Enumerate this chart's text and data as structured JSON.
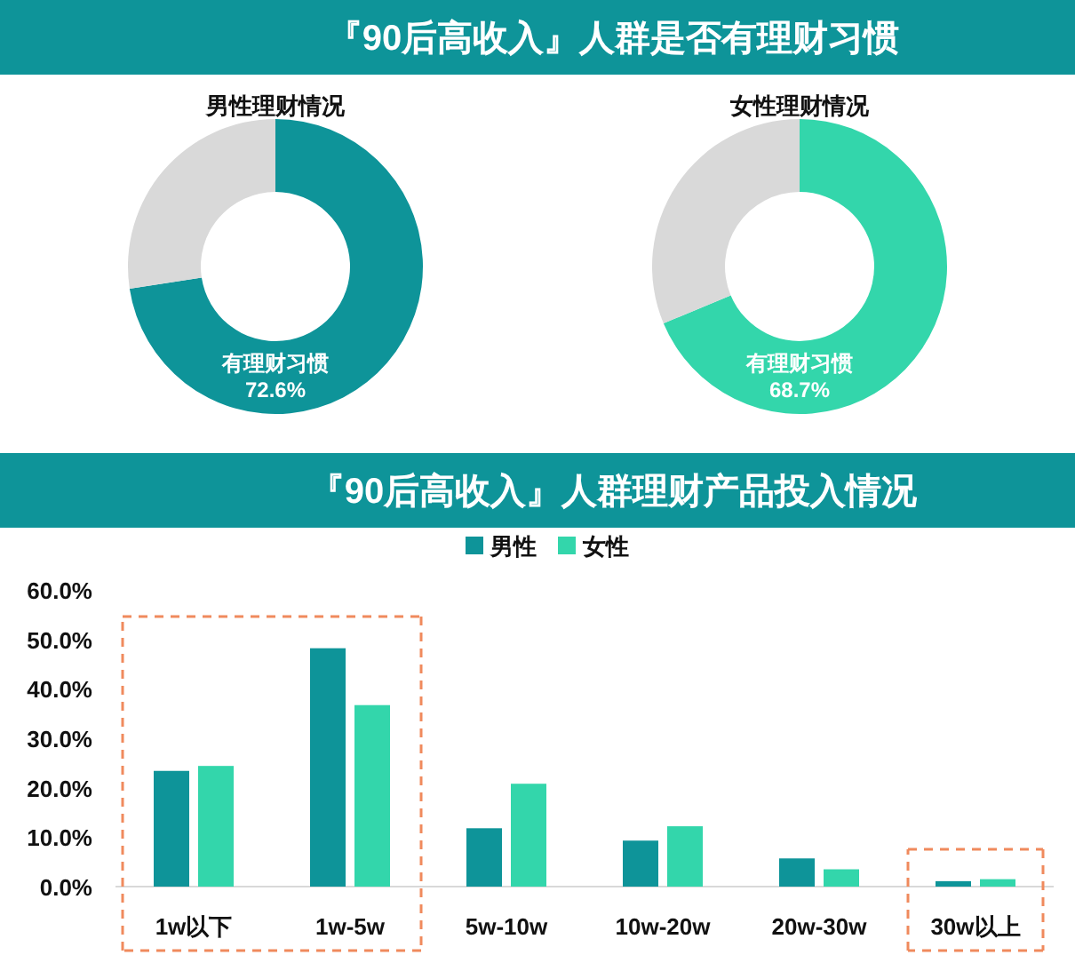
{
  "chart_data": [
    {
      "type": "donut",
      "title": "『90后高收入』人群是否有理财习惯",
      "subtitle": "男性理财情况",
      "categories": [
        "有理财习惯",
        null
      ],
      "values": [
        72.6,
        27.4
      ],
      "colors": [
        "#0e9499",
        "#d9d9d9"
      ],
      "value_labels": [
        "72.6%",
        null
      ]
    },
    {
      "type": "donut",
      "subtitle": "女性理财情况",
      "categories": [
        "有理财习惯",
        null
      ],
      "values": [
        68.7,
        31.3
      ],
      "colors": [
        "#33d6ab",
        "#d9d9d9"
      ],
      "value_labels": [
        "68.7%",
        null
      ]
    },
    {
      "type": "bar",
      "title": "『90后高收入』人群理财产品投入情况",
      "categories": [
        "1w以下",
        "1w-5w",
        "5w-10w",
        "10w-20w",
        "20w-30w",
        "30w以上"
      ],
      "series": [
        {
          "name": "男性",
          "color": "#0e9499",
          "values": [
            23.4,
            48.2,
            11.8,
            9.3,
            5.7,
            1.1
          ]
        },
        {
          "name": "女性",
          "color": "#33d6ab",
          "values": [
            24.4,
            36.7,
            20.8,
            12.2,
            3.5,
            1.5
          ]
        }
      ],
      "ylim": [
        0,
        60
      ],
      "yticks": [
        {
          "value": 0,
          "label": "0.0%"
        },
        {
          "value": 10,
          "label": "10.0%"
        },
        {
          "value": 20,
          "label": "20.0%"
        },
        {
          "value": 30,
          "label": "30.0%"
        },
        {
          "value": 40,
          "label": "40.0%"
        },
        {
          "value": 50,
          "label": "50.0%"
        },
        {
          "value": 60,
          "label": "60.0%"
        }
      ],
      "legend": "top",
      "grid": false
    }
  ]
}
